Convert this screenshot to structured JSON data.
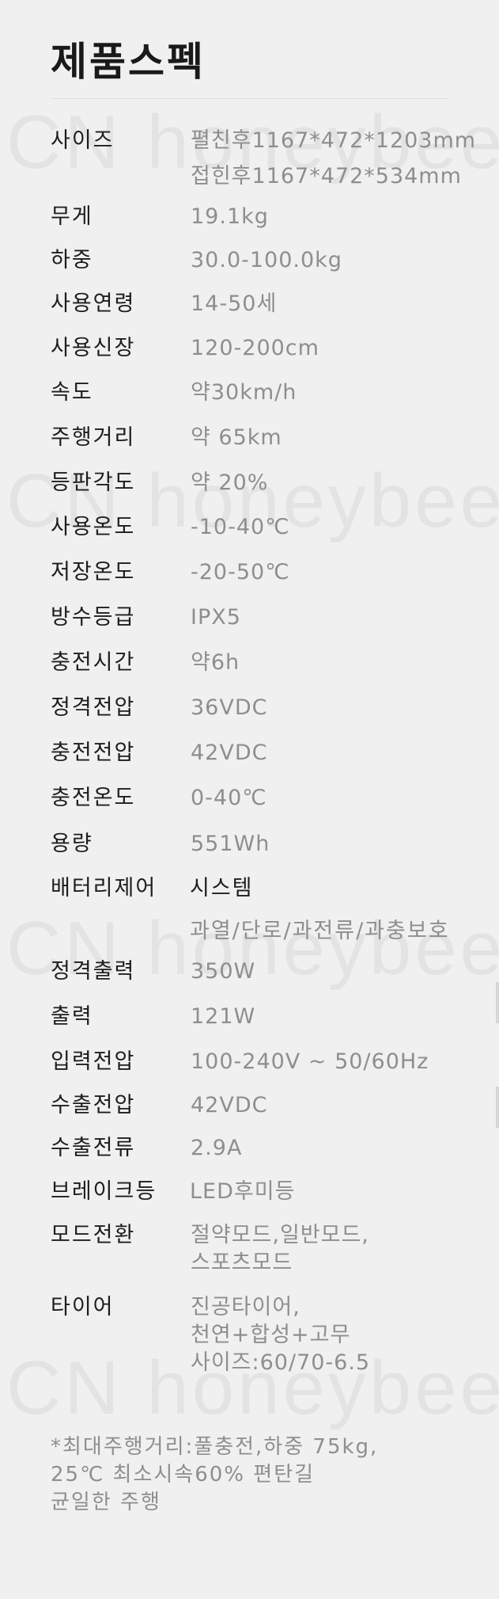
{
  "watermark_text": "CN  honeybee",
  "title": "제품스펙",
  "specs": [
    {
      "label": "사이즈",
      "values": [
        "펼친후1167*472*1203mm",
        "접힌후1167*472*534mm"
      ]
    },
    {
      "label": "무게",
      "values": [
        "19.1kg"
      ]
    },
    {
      "label": "하중",
      "values": [
        "30.0-100.0kg"
      ]
    },
    {
      "label": "사용연령",
      "values": [
        "14-50세"
      ]
    },
    {
      "label": "사용신장",
      "values": [
        "120-200cm"
      ]
    },
    {
      "label": "속도",
      "values": [
        "약30km/h"
      ]
    },
    {
      "label": "주행거리",
      "values": [
        "약 65km"
      ]
    },
    {
      "label": "등판각도",
      "values": [
        "약 20%"
      ]
    },
    {
      "label": "사용온도",
      "values": [
        "-10-40℃"
      ]
    },
    {
      "label": "저장온도",
      "values": [
        "-20-50℃"
      ]
    },
    {
      "label": "방수등급",
      "values": [
        "IPX5"
      ]
    },
    {
      "label": "충전시간",
      "values": [
        "약6h"
      ]
    },
    {
      "label": "정격전압",
      "values": [
        "36VDC"
      ]
    },
    {
      "label": "충전전압",
      "values": [
        "42VDC"
      ]
    },
    {
      "label": "충전온도",
      "values": [
        "0-40℃"
      ]
    },
    {
      "label": "용량",
      "values": [
        "551Wh"
      ]
    },
    {
      "label": "배터리제어",
      "values": [
        "시스템",
        "과열/단로/과전류/과충보호"
      ]
    },
    {
      "label": "정격출력",
      "values": [
        "350W"
      ]
    },
    {
      "label": "출력",
      "values": [
        "121W"
      ]
    },
    {
      "label": "입력전압",
      "values": [
        "100-240V ~ 50/60Hz"
      ]
    },
    {
      "label": "수출전압",
      "values": [
        "42VDC"
      ]
    },
    {
      "label": "수출전류",
      "values": [
        "2.9A"
      ]
    },
    {
      "label": "브레이크등",
      "values": [
        "LED후미등"
      ]
    },
    {
      "label": "모드전환",
      "values": [
        "절약모드,일반모드,",
        "스포츠모드"
      ]
    },
    {
      "label": "타이어",
      "values": [
        "진공타이어,",
        "천연+합성+고무",
        "사이즈:60/70-6.5"
      ]
    }
  ],
  "footnote": [
    "*최대주행거리:풀충전,하중 75kg,",
    "25℃ 최소시속60% 편탄길",
    "균일한 주행"
  ]
}
